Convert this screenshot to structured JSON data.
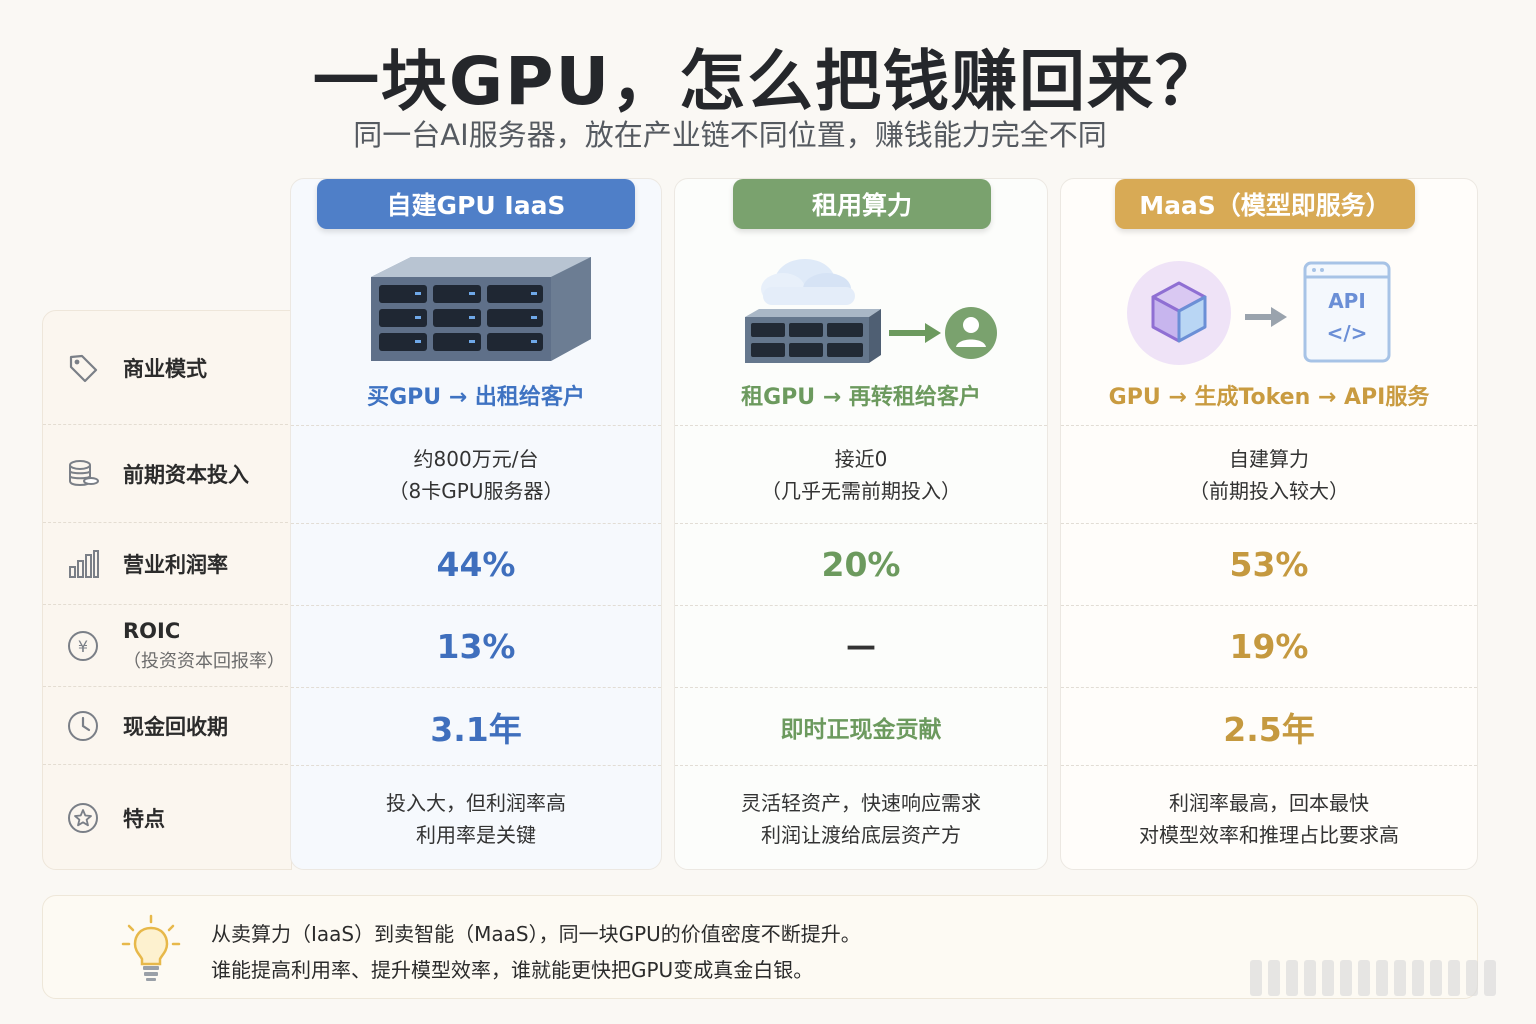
{
  "title": "一块GPU，怎么把钱赚回来？",
  "subtitle": "同一台AI服务器，放在产业链不同位置，赚钱能力完全不同",
  "rows": {
    "model": "商业模式",
    "capex": "前期资本投入",
    "margin": "营业利润率",
    "roic": "ROIC",
    "roic_sub": "（投资资本回报率）",
    "payback": "现金回收期",
    "features": "特点"
  },
  "columns": [
    {
      "header": "自建GPU IaaS",
      "model": "买GPU → 出租给客户",
      "capex_1": "约800万元/台",
      "capex_2": "（8卡GPU服务器）",
      "margin": "44%",
      "roic": "13%",
      "payback": "3.1年",
      "feature_1": "投入大，但利润率高",
      "feature_2": "利用率是关键",
      "color": "#4f7fc8"
    },
    {
      "header": "租用算力",
      "model": "租GPU → 再转租给客户",
      "capex_1": "接近0",
      "capex_2": "（几乎无需前期投入）",
      "margin": "20%",
      "roic": "—",
      "payback": "即时正现金贡献",
      "feature_1": "灵活轻资产，快速响应需求",
      "feature_2": "利润让渡给底层资产方",
      "color": "#7aa26e"
    },
    {
      "header": "MaaS（模型即服务）",
      "model": "GPU → 生成Token → API服务",
      "capex_1": "自建算力",
      "capex_2": "（前期投入较大）",
      "margin": "53%",
      "roic": "19%",
      "payback": "2.5年",
      "feature_1": "利润率最高，回本最快",
      "feature_2": "对模型效率和推理占比要求高",
      "color": "#d8aa55"
    }
  ],
  "illus": {
    "api_label": "API",
    "code_label": "</>"
  },
  "footer": {
    "line1": "从卖算力（IaaS）到卖智能（MaaS），同一块GPU的价值密度不断提升。",
    "line2": "谁能提高利用率、提升模型效率，谁就能更快把GPU变成真金白银。"
  }
}
